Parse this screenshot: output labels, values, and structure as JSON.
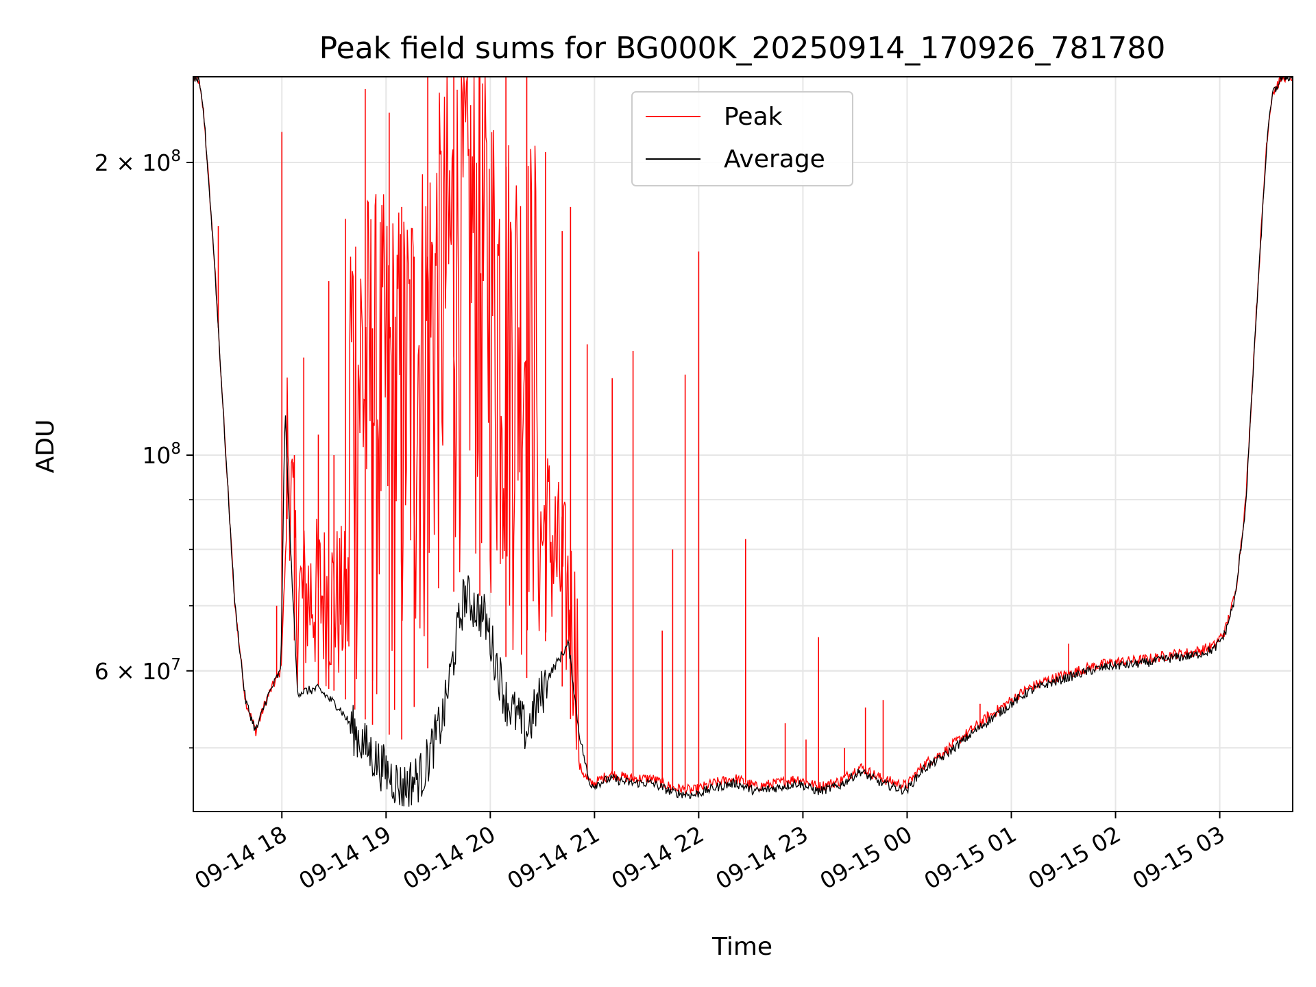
{
  "chart_data": {
    "type": "line",
    "title": "Peak field sums for BG000K_20250914_170926_781780",
    "xlabel": "Time",
    "ylabel": "ADU",
    "y_scale": "log",
    "ylim": [
      43000000,
      245000000
    ],
    "x_unit": "hours since 2025-09-14 17:09",
    "xlim": [
      0,
      10.55
    ],
    "grid": true,
    "legend_position": "top-center",
    "x_ticks": [
      {
        "label": "09-14 18",
        "value": 0.85
      },
      {
        "label": "09-14 19",
        "value": 1.85
      },
      {
        "label": "09-14 20",
        "value": 2.85
      },
      {
        "label": "09-14 21",
        "value": 3.85
      },
      {
        "label": "09-14 22",
        "value": 4.85
      },
      {
        "label": "09-14 23",
        "value": 5.85
      },
      {
        "label": "09-15 00",
        "value": 6.85
      },
      {
        "label": "09-15 01",
        "value": 7.85
      },
      {
        "label": "09-15 02",
        "value": 8.85
      },
      {
        "label": "09-15 03",
        "value": 9.85
      }
    ],
    "y_ticks": [
      {
        "label": "2 × 10^8",
        "base": "2 × 10",
        "exp": "8",
        "value": 200000000
      },
      {
        "label": "10^8",
        "base": "10",
        "exp": "8",
        "value": 100000000
      },
      {
        "label": "6 × 10^7",
        "base": "6 × 10",
        "exp": "7",
        "value": 60000000
      }
    ],
    "series": [
      {
        "name": "Peak",
        "color": "#ff0000",
        "x": [
          0,
          0.05,
          0.1,
          0.2,
          0.3,
          0.4,
          0.5,
          0.6,
          0.7,
          0.8,
          0.84,
          0.9,
          1.0,
          1.2,
          1.4,
          1.6,
          1.8,
          2.0,
          2.2,
          2.4,
          2.6,
          2.8,
          3.0,
          3.2,
          3.4,
          3.6,
          3.7,
          3.8,
          3.85,
          4.0,
          4.2,
          4.4,
          4.6,
          4.8,
          5.0,
          5.2,
          5.4,
          5.6,
          5.8,
          6.0,
          6.2,
          6.4,
          6.6,
          6.8,
          6.85,
          7.0,
          7.2,
          7.4,
          7.6,
          7.8,
          8.0,
          8.2,
          8.4,
          8.6,
          8.8,
          9.0,
          9.2,
          9.4,
          9.6,
          9.8,
          9.9,
          10.0,
          10.1,
          10.2,
          10.3,
          10.35,
          10.45,
          10.55
        ],
        "y": [
          245000000,
          243000000,
          225000000,
          160000000,
          105000000,
          70000000,
          56000000,
          52000000,
          56000000,
          59000000,
          60000000,
          86000000,
          57000000,
          58000000,
          57000000,
          54000000,
          52000000,
          51000000,
          58000000,
          68000000,
          77000000,
          70000000,
          62000000,
          59000000,
          65000000,
          55000000,
          48000000,
          46000000,
          46000000,
          47000000,
          46500000,
          46500000,
          45500000,
          45200000,
          46000000,
          46500000,
          45600000,
          46000000,
          46500000,
          45600000,
          46200000,
          47800000,
          46500000,
          45800000,
          45800000,
          48000000,
          49500000,
          51500000,
          53500000,
          55500000,
          57500000,
          58700000,
          59600000,
          60500000,
          61200000,
          61400000,
          61800000,
          62400000,
          62700000,
          63700000,
          66000000,
          72000000,
          90000000,
          140000000,
          210000000,
          235000000,
          245000000,
          245000000
        ],
        "spikes": [
          {
            "x": 0.24,
            "y": 172000000
          },
          {
            "x": 0.8,
            "y": 70000000
          },
          {
            "x": 0.85,
            "y": 215000000
          },
          {
            "x": 0.9,
            "y": 105000000
          },
          {
            "x": 0.97,
            "y": 100000000
          },
          {
            "x": 1.06,
            "y": 126000000
          },
          {
            "x": 1.2,
            "y": 105000000
          },
          {
            "x": 1.3,
            "y": 151000000
          },
          {
            "x": 1.35,
            "y": 100000000
          },
          {
            "x": 1.46,
            "y": 175000000
          },
          {
            "x": 1.55,
            "y": 85000000
          },
          {
            "x": 1.65,
            "y": 238000000
          },
          {
            "x": 1.72,
            "y": 135000000
          },
          {
            "x": 1.88,
            "y": 225000000
          },
          {
            "x": 2.0,
            "y": 180000000
          },
          {
            "x": 2.12,
            "y": 160000000
          },
          {
            "x": 2.25,
            "y": 245000000
          },
          {
            "x": 2.5,
            "y": 245000000
          },
          {
            "x": 2.75,
            "y": 245000000
          },
          {
            "x": 3.0,
            "y": 245000000
          },
          {
            "x": 3.2,
            "y": 245000000
          },
          {
            "x": 3.38,
            "y": 205000000
          },
          {
            "x": 3.54,
            "y": 170000000
          },
          {
            "x": 3.62,
            "y": 180000000
          },
          {
            "x": 3.78,
            "y": 130000000
          },
          {
            "x": 4.02,
            "y": 120000000
          },
          {
            "x": 4.22,
            "y": 128000000
          },
          {
            "x": 4.5,
            "y": 66000000
          },
          {
            "x": 4.6,
            "y": 80000000
          },
          {
            "x": 4.72,
            "y": 121000000
          },
          {
            "x": 4.85,
            "y": 162000000
          },
          {
            "x": 5.3,
            "y": 82000000
          },
          {
            "x": 5.68,
            "y": 53000000
          },
          {
            "x": 5.88,
            "y": 51000000
          },
          {
            "x": 6.0,
            "y": 65000000
          },
          {
            "x": 6.25,
            "y": 50000000
          },
          {
            "x": 6.45,
            "y": 55000000
          },
          {
            "x": 6.62,
            "y": 56000000
          },
          {
            "x": 8.4,
            "y": 64000000
          },
          {
            "x": 7.55,
            "y": 55500000
          },
          {
            "x": 7.62,
            "y": 54500000
          }
        ]
      },
      {
        "name": "Average",
        "color": "#000000",
        "x": [
          0,
          0.05,
          0.1,
          0.2,
          0.3,
          0.4,
          0.5,
          0.6,
          0.7,
          0.8,
          0.84,
          0.88,
          0.92,
          1.0,
          1.2,
          1.4,
          1.6,
          1.8,
          2.0,
          2.2,
          2.4,
          2.6,
          2.8,
          3.0,
          3.2,
          3.4,
          3.6,
          3.7,
          3.8,
          3.85,
          4.0,
          4.2,
          4.4,
          4.6,
          4.8,
          5.0,
          5.2,
          5.4,
          5.6,
          5.8,
          6.0,
          6.2,
          6.4,
          6.6,
          6.8,
          6.85,
          7.0,
          7.2,
          7.4,
          7.6,
          7.8,
          8.0,
          8.2,
          8.4,
          8.6,
          8.8,
          9.0,
          9.2,
          9.4,
          9.6,
          9.8,
          9.9,
          10.0,
          10.1,
          10.2,
          10.3,
          10.35,
          10.45,
          10.55
        ],
        "y": [
          245000000,
          243000000,
          225000000,
          160000000,
          105000000,
          70000000,
          56000000,
          52000000,
          56000000,
          59000000,
          60000000,
          112000000,
          86000000,
          57000000,
          57500000,
          55000000,
          51000000,
          48000000,
          45500000,
          47000000,
          54000000,
          72000000,
          68000000,
          56000000,
          52000000,
          59000000,
          64000000,
          52000000,
          46000000,
          45800000,
          46500000,
          46000000,
          46000000,
          45000000,
          44700000,
          45500000,
          46000000,
          45100000,
          45500000,
          46000000,
          45100000,
          45700000,
          47300000,
          46000000,
          45300000,
          45300000,
          47500000,
          49000000,
          51000000,
          53000000,
          55000000,
          57000000,
          58200000,
          59100000,
          60000000,
          60700000,
          60900000,
          61300000,
          61900000,
          62200000,
          63200000,
          65500000,
          71500000,
          89000000,
          139000000,
          208000000,
          234000000,
          245000000,
          245000000
        ]
      }
    ]
  }
}
